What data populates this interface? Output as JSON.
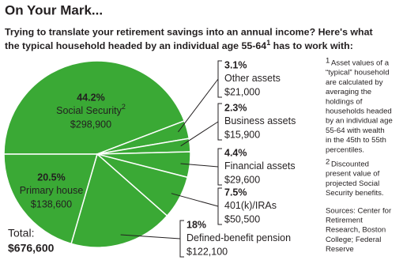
{
  "chart_data": {
    "type": "pie",
    "title": "On Your Mark...",
    "subtitle": {
      "line1": "Trying to translate your retirement savings into an annual income? Here's what",
      "line2": "the typical household headed by an individual age 55-64",
      "line2_note": "1",
      "line2_end": " has to work with:"
    },
    "categories": [
      "Social Security",
      "Other assets",
      "Business assets",
      "Financial assets",
      "401(k)/IRAs",
      "Defined-benefit pension",
      "Primary house"
    ],
    "category_notes": [
      "2",
      null,
      null,
      null,
      null,
      null,
      null
    ],
    "values": [
      44.2,
      3.1,
      2.3,
      4.4,
      7.5,
      18,
      20.5
    ],
    "value_labels": [
      "44.2%",
      "3.1%",
      "2.3%",
      "4.4%",
      "7.5%",
      "18%",
      "20.5%"
    ],
    "amounts": [
      "$298,900",
      "$21,000",
      "$15,900",
      "$29,600",
      "$50,500",
      "$122,100",
      "$138,600"
    ],
    "color": "#3aa935",
    "total_label": "Total:",
    "total": "$676,600",
    "footnotes": [
      {
        "marker": "1",
        "lines": [
          "Asset values of a",
          "“typical” household",
          "are calculated by",
          "averaging the",
          "holdings of",
          "households headed",
          "by an individual age",
          "55-64 with wealth",
          "in the 45th to 55th",
          "percentiles."
        ]
      },
      {
        "marker": "2",
        "lines": [
          "Discounted",
          "present value of",
          "projected Social",
          "Security benefits."
        ]
      }
    ],
    "sources": [
      "Sources: Center for",
      "Retirement",
      "Research, Boston",
      "College; Federal",
      "Reserve"
    ]
  }
}
